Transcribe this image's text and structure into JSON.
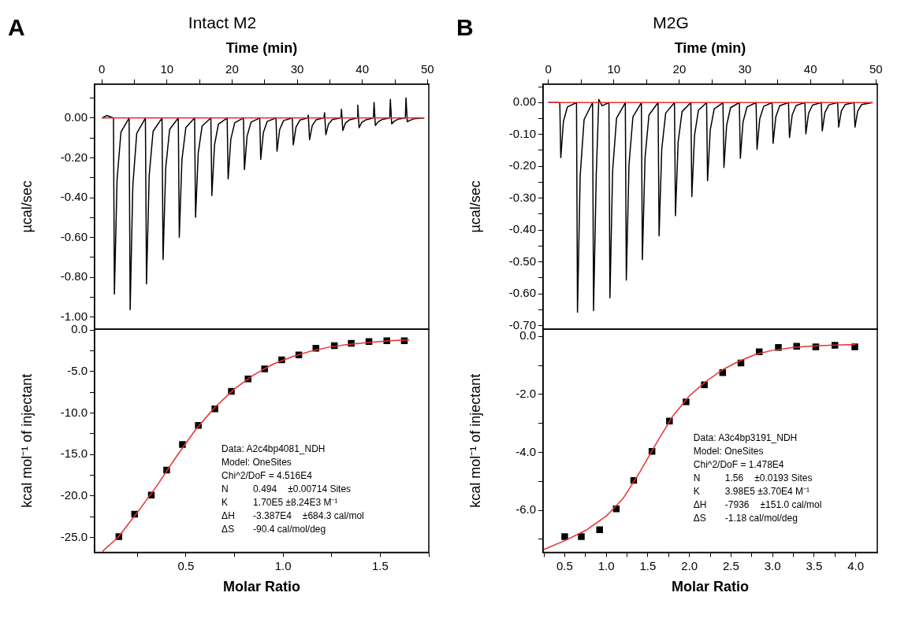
{
  "chart_data": [
    {
      "type": "line",
      "title": "Intact M2",
      "xlabel": "Time (min)",
      "ylabel": "µcal/sec",
      "annotations": [
        "A"
      ],
      "xlim": [
        -1.1,
        50.2
      ],
      "ylim": [
        -1.06,
        0.17
      ],
      "xticks": [
        0,
        {
          "value": 5,
          "label": null
        },
        10,
        {
          "value": 15,
          "label": null
        },
        20,
        {
          "value": 25,
          "label": null
        },
        30,
        {
          "value": 35,
          "label": null
        },
        40,
        {
          "value": 45,
          "label": null
        },
        50
      ],
      "yticks": [
        {
          "value": 0.1,
          "label": null
        },
        {
          "value": 0,
          "label": "0.00"
        },
        {
          "value": -0.1,
          "label": null
        },
        {
          "value": -0.2,
          "label": "-0.20"
        },
        {
          "value": -0.3,
          "label": null
        },
        {
          "value": -0.4,
          "label": "-0.40"
        },
        {
          "value": -0.5,
          "label": null
        },
        {
          "value": -0.6,
          "label": "-0.60"
        },
        {
          "value": -0.7,
          "label": null
        },
        {
          "value": -0.8,
          "label": "-0.80"
        },
        {
          "value": -0.9,
          "label": null
        },
        {
          "value": -1.0,
          "label": "-1.00"
        }
      ],
      "series": [
        {
          "color": "#000000",
          "marker": "none",
          "x": [
            0,
            0.8,
            1.8,
            1.94,
            2.35,
            2.95,
            4.2,
            4.36,
            4.77,
            5.37,
            6.7,
            6.87,
            7.28,
            7.88,
            9.25,
            9.41,
            9.82,
            10.42,
            11.75,
            11.9,
            12.31,
            12.91,
            14.25,
            14.4,
            14.81,
            15.41,
            16.75,
            16.9,
            17.31,
            17.91,
            19.25,
            19.4,
            19.81,
            20.41,
            21.75,
            21.9,
            22.31,
            22.91,
            24.25,
            24.4,
            24.81,
            25.41,
            26.75,
            26.9,
            27.31,
            27.91,
            29.25,
            29.4,
            29.81,
            30.41,
            31.6,
            31.7,
            31.9,
            32.31,
            32.91,
            34.1,
            34.2,
            34.4,
            34.81,
            35.41,
            36.7,
            36.8,
            37.0,
            37.41,
            38.0,
            39.2,
            39.3,
            39.5,
            39.91,
            40.5,
            41.7,
            41.8,
            42.0,
            42.41,
            43.0,
            44.2,
            44.3,
            44.5,
            44.91,
            45.5,
            46.6,
            46.7,
            46.9,
            47.31,
            47.9,
            49.5
          ],
          "values": [
            0,
            0.012,
            0,
            -0.884,
            -0.31,
            -0.07,
            0,
            -0.962,
            -0.34,
            -0.077,
            0,
            -0.833,
            -0.29,
            -0.067,
            0,
            -0.71,
            -0.25,
            -0.057,
            0,
            -0.599,
            -0.21,
            -0.048,
            0,
            -0.499,
            -0.175,
            -0.04,
            0,
            -0.389,
            -0.136,
            -0.031,
            0,
            -0.306,
            -0.107,
            -0.024,
            0,
            -0.259,
            -0.091,
            -0.021,
            0,
            -0.208,
            -0.073,
            -0.017,
            0,
            -0.167,
            -0.058,
            -0.013,
            0,
            -0.135,
            -0.047,
            -0.011,
            0,
            0.014,
            -0.109,
            -0.038,
            -0.009,
            0,
            0.027,
            -0.084,
            -0.03,
            -0.008,
            0,
            0.044,
            -0.063,
            -0.025,
            -0.01,
            0,
            0.064,
            -0.049,
            -0.022,
            -0.01,
            0,
            0.078,
            -0.038,
            -0.02,
            -0.008,
            0,
            0.093,
            -0.029,
            -0.016,
            -0.006,
            0,
            0.101,
            -0.019,
            -0.012,
            -0.004,
            0
          ]
        },
        {
          "type": "line",
          "color": "#e8312f",
          "marker": "none",
          "x": [
            0,
            49.5
          ],
          "values": [
            0,
            0
          ]
        }
      ]
    },
    {
      "type": "line",
      "title": "M2G",
      "xlabel": "Time (min)",
      "ylabel": "µcal/sec",
      "annotations": [
        "B"
      ],
      "xlim": [
        -0.8,
        50.2
      ],
      "ylim": [
        -0.711,
        0.058
      ],
      "xticks": [
        0,
        {
          "value": 5,
          "label": null
        },
        10,
        {
          "value": 15,
          "label": null
        },
        20,
        {
          "value": 25,
          "label": null
        },
        30,
        {
          "value": 35,
          "label": null
        },
        40,
        {
          "value": 45,
          "label": null
        },
        50
      ],
      "yticks": [
        {
          "value": 0.05,
          "label": null
        },
        {
          "value": 0,
          "label": "0.00"
        },
        {
          "value": -0.05,
          "label": null
        },
        {
          "value": -0.1,
          "label": "-0.10"
        },
        {
          "value": -0.15,
          "label": null
        },
        {
          "value": -0.2,
          "label": "-0.20"
        },
        {
          "value": -0.25,
          "label": null
        },
        {
          "value": -0.3,
          "label": "-0.30"
        },
        {
          "value": -0.35,
          "label": null
        },
        {
          "value": -0.4,
          "label": "-0.40"
        },
        {
          "value": -0.45,
          "label": null
        },
        {
          "value": -0.5,
          "label": "-0.50"
        },
        {
          "value": -0.55,
          "label": null
        },
        {
          "value": -0.6,
          "label": "-0.60"
        },
        {
          "value": -0.65,
          "label": null
        },
        {
          "value": -0.7,
          "label": "-0.70"
        }
      ],
      "series": [
        {
          "color": "#000000",
          "marker": "none",
          "x": [
            0,
            1.75,
            1.9,
            2.3,
            2.9,
            4.3,
            4.45,
            4.86,
            5.46,
            6.75,
            6.9,
            7.31,
            7.7,
            8.2,
            9.25,
            9.4,
            9.81,
            10.41,
            11.75,
            11.9,
            12.31,
            12.91,
            14.2,
            14.35,
            14.76,
            15.36,
            16.75,
            16.9,
            17.31,
            17.91,
            19.25,
            19.4,
            19.81,
            20.41,
            21.75,
            21.9,
            22.31,
            22.91,
            24.15,
            24.3,
            24.71,
            25.31,
            26.65,
            26.8,
            27.21,
            27.81,
            29.15,
            29.3,
            29.71,
            30.31,
            31.7,
            31.85,
            32.26,
            32.86,
            34.15,
            34.3,
            34.71,
            35.31,
            36.65,
            36.8,
            37.21,
            37.81,
            39.15,
            39.3,
            39.71,
            40.31,
            41.65,
            41.8,
            42.21,
            42.81,
            44.15,
            44.3,
            44.71,
            45.31,
            46.65,
            46.8,
            47.21,
            47.81,
            49.5
          ],
          "values": [
            0,
            0,
            -0.173,
            -0.06,
            -0.014,
            0,
            -0.658,
            -0.23,
            -0.053,
            0,
            -0.653,
            -0.23,
            0.01,
            -0.01,
            0,
            -0.613,
            -0.215,
            -0.049,
            0,
            -0.557,
            -0.195,
            -0.045,
            0,
            -0.493,
            -0.173,
            -0.039,
            0,
            -0.418,
            -0.146,
            -0.033,
            0,
            -0.355,
            -0.124,
            -0.028,
            0,
            -0.295,
            -0.103,
            -0.024,
            0,
            -0.245,
            -0.086,
            -0.02,
            0,
            -0.204,
            -0.071,
            -0.016,
            0,
            -0.175,
            -0.061,
            -0.014,
            0,
            -0.147,
            -0.051,
            -0.012,
            0,
            -0.128,
            -0.045,
            -0.01,
            0,
            -0.11,
            -0.039,
            -0.009,
            0,
            -0.098,
            -0.034,
            -0.008,
            0,
            -0.089,
            -0.031,
            -0.007,
            0,
            -0.077,
            -0.027,
            -0.006,
            0,
            -0.077,
            -0.027,
            -0.006,
            0
          ]
        },
        {
          "type": "line",
          "color": "#e8312f",
          "marker": "none",
          "x": [
            0,
            49.5
          ],
          "values": [
            0,
            0
          ]
        }
      ]
    },
    {
      "type": "scatter",
      "xlabel": "Molar Ratio",
      "ylabel": "kcal mol⁻¹ of injectant",
      "annotations": [
        "Data: A2c4bp4081_NDH",
        "Model: OneSites",
        "Chi^2/DoF = 4.516E4",
        "N  0.494  ±0.00714 Sites",
        "K  1.70E5 ±8.24E3 M⁻¹",
        "ΔH  -3.387E4  ±684.3 cal/mol",
        "ΔS  -90.4 cal/mol/deg"
      ],
      "xlim": [
        0.03,
        1.75
      ],
      "ylim": [
        -26.8,
        0.1
      ],
      "xticks": [
        {
          "value": 0.25,
          "label": null
        },
        {
          "value": 0.5,
          "label": "0.5"
        },
        {
          "value": 0.75,
          "label": null
        },
        {
          "value": 1.0,
          "label": "1.0"
        },
        {
          "value": 1.25,
          "label": null
        },
        {
          "value": 1.5,
          "label": "1.5"
        },
        {
          "value": 1.75,
          "label": null
        }
      ],
      "yticks": [
        {
          "value": 0,
          "label": "0.0"
        },
        {
          "value": -2.5,
          "label": null
        },
        {
          "value": -5,
          "label": "-5.0"
        },
        {
          "value": -7.5,
          "label": null
        },
        {
          "value": -10,
          "label": "-10.0"
        },
        {
          "value": -12.5,
          "label": null
        },
        {
          "value": -15,
          "label": "-15.0"
        },
        {
          "value": -17.5,
          "label": null
        },
        {
          "value": -20,
          "label": "-20.0"
        },
        {
          "value": -22.5,
          "label": null
        },
        {
          "value": -25,
          "label": "-25.0"
        }
      ],
      "series": [
        {
          "color": "#000000",
          "marker": "square",
          "x": [
            0.155,
            0.236,
            0.322,
            0.401,
            0.482,
            0.564,
            0.649,
            0.734,
            0.82,
            0.905,
            0.993,
            1.081,
            1.169,
            1.264,
            1.351,
            1.442,
            1.534,
            1.624
          ],
          "values": [
            -24.9,
            -22.2,
            -19.9,
            -16.9,
            -13.8,
            -11.5,
            -9.5,
            -7.4,
            -5.9,
            -4.7,
            -3.6,
            -3.0,
            -2.2,
            -1.9,
            -1.6,
            -1.4,
            -1.3,
            -1.3
          ]
        },
        {
          "type": "line",
          "color": "#e8312f",
          "marker": "none",
          "x": [
            0.07,
            0.15,
            0.25,
            0.35,
            0.45,
            0.55,
            0.65,
            0.75,
            0.85,
            0.95,
            1.05,
            1.15,
            1.25,
            1.35,
            1.45,
            1.55,
            1.65
          ],
          "values": [
            -26.7,
            -25.0,
            -22.0,
            -18.8,
            -15.3,
            -12.0,
            -9.3,
            -7.1,
            -5.4,
            -4.1,
            -3.2,
            -2.5,
            -2.0,
            -1.7,
            -1.5,
            -1.3,
            -1.2
          ]
        }
      ]
    },
    {
      "type": "scatter",
      "xlabel": "Molar Ratio",
      "ylabel": "kcal mol⁻¹ of injectant",
      "annotations": [
        "Data: A3c4bp3191_NDH",
        "Model: OneSites",
        "Chi^2/DoF = 1.478E4",
        "N  1.56  ±0.0193 Sites",
        "K  3.98E5 ±3.70E4 M⁻¹",
        "ΔH  -7936  ±151.0 cal/mol",
        "ΔS  -1.18 cal/mol/deg"
      ],
      "xlim": [
        0.24,
        4.26
      ],
      "ylim": [
        -7.45,
        0.25
      ],
      "xticks": [
        {
          "value": 0.25,
          "label": null
        },
        {
          "value": 0.5,
          "label": "0.5"
        },
        {
          "value": 0.75,
          "label": null
        },
        {
          "value": 1.0,
          "label": "1.0"
        },
        {
          "value": 1.25,
          "label": null
        },
        {
          "value": 1.5,
          "label": "1.5"
        },
        {
          "value": 1.75,
          "label": null
        },
        {
          "value": 2.0,
          "label": "2.0"
        },
        {
          "value": 2.25,
          "label": null
        },
        {
          "value": 2.5,
          "label": "2.5"
        },
        {
          "value": 2.75,
          "label": null
        },
        {
          "value": 3.0,
          "label": "3.0"
        },
        {
          "value": 3.25,
          "label": null
        },
        {
          "value": 3.5,
          "label": "3.5"
        },
        {
          "value": 3.75,
          "label": null
        },
        {
          "value": 4.0,
          "label": "4.0"
        }
      ],
      "yticks": [
        {
          "value": 0,
          "label": "0.0"
        },
        {
          "value": -1,
          "label": null
        },
        {
          "value": -2,
          "label": "-2.0"
        },
        {
          "value": -3,
          "label": null
        },
        {
          "value": -4,
          "label": "-4.0"
        },
        {
          "value": -5,
          "label": null
        },
        {
          "value": -6,
          "label": "-6.0"
        },
        {
          "value": -7,
          "label": null
        }
      ],
      "series": [
        {
          "color": "#000000",
          "marker": "square",
          "x": [
            0.5,
            0.7,
            0.92,
            1.12,
            1.33,
            1.55,
            1.76,
            1.96,
            2.18,
            2.4,
            2.62,
            2.84,
            3.07,
            3.29,
            3.52,
            3.75,
            3.99
          ],
          "values": [
            -6.91,
            -6.91,
            -6.67,
            -5.95,
            -4.97,
            -3.97,
            -2.92,
            -2.26,
            -1.67,
            -1.25,
            -0.92,
            -0.53,
            -0.38,
            -0.34,
            -0.36,
            -0.31,
            -0.36
          ]
        },
        {
          "type": "line",
          "color": "#e8312f",
          "marker": "none",
          "x": [
            0.25,
            0.5,
            0.75,
            1.0,
            1.2,
            1.4,
            1.6,
            1.8,
            2.0,
            2.2,
            2.4,
            2.6,
            2.8,
            3.0,
            3.25,
            3.5,
            3.75,
            4.0
          ],
          "values": [
            -7.35,
            -7.05,
            -6.7,
            -6.2,
            -5.6,
            -4.7,
            -3.7,
            -2.75,
            -2.05,
            -1.55,
            -1.15,
            -0.85,
            -0.62,
            -0.48,
            -0.38,
            -0.33,
            -0.3,
            -0.28
          ]
        }
      ]
    }
  ]
}
